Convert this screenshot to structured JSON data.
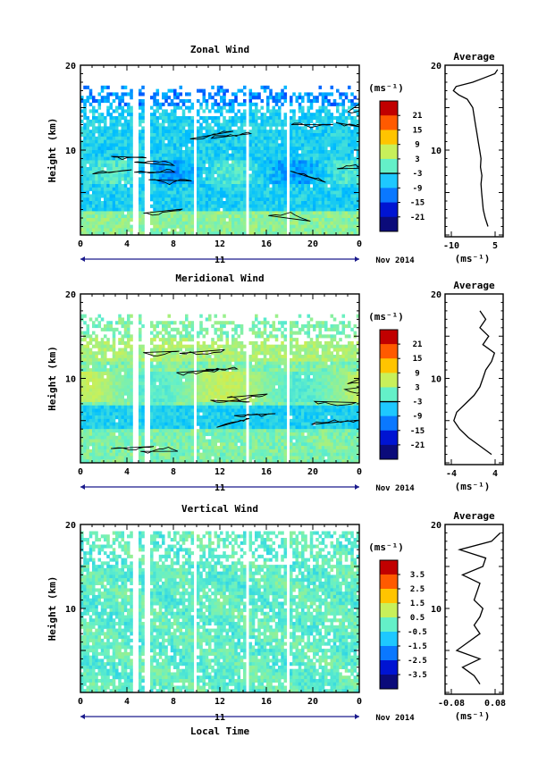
{
  "chart_data": [
    {
      "type": "heatmap",
      "title": "Zonal Wind",
      "ylabel": "Height (km)",
      "ylim": [
        0,
        20
      ],
      "xlim": [
        0,
        24
      ],
      "x_ticks": [
        "0",
        "4",
        "8",
        "12",
        "16",
        "20",
        "0"
      ],
      "y_ticks": [
        "20",
        "10"
      ],
      "date_day": "11",
      "date_month": "Nov 2014",
      "colorbar": {
        "unit": "(ms⁻¹)",
        "labels": [
          "21",
          "15",
          "9",
          "3",
          "-3",
          "-9",
          "-15",
          "-21"
        ],
        "range": [
          -24,
          24
        ]
      },
      "field": "zonal",
      "profile": {
        "title": "Average",
        "xlabel": "(ms⁻¹)",
        "x_ticks": [
          "-10",
          "5"
        ],
        "xlim": [
          -13,
          8
        ],
        "y_tick": "10",
        "y_top": "20",
        "heights": [
          1.0,
          2.0,
          3.0,
          4.0,
          5.0,
          6.0,
          7.0,
          8.0,
          9.0,
          10.0,
          11.0,
          12.0,
          13.0,
          14.0,
          15.0,
          16.0,
          16.5,
          17.0,
          17.5,
          18.0,
          18.5,
          19.0,
          19.5
        ],
        "values": [
          2.5,
          1.5,
          0.8,
          0.5,
          0.2,
          0.0,
          0.3,
          -0.2,
          0.0,
          -0.5,
          -1.0,
          -1.5,
          -2.0,
          -2.5,
          -3.0,
          -5.0,
          -8.0,
          -10.0,
          -9.0,
          -3.0,
          1.0,
          5.0,
          6.0
        ]
      }
    },
    {
      "type": "heatmap",
      "title": "Meridional Wind",
      "ylabel": "Height (km)",
      "ylim": [
        0,
        20
      ],
      "xlim": [
        0,
        24
      ],
      "x_ticks": [
        "0",
        "4",
        "8",
        "12",
        "16",
        "20",
        "0"
      ],
      "y_ticks": [
        "20",
        "10"
      ],
      "date_day": "11",
      "date_month": "Nov 2014",
      "colorbar": {
        "unit": "(ms⁻¹)",
        "labels": [
          "21",
          "15",
          "9",
          "3",
          "-3",
          "-9",
          "-15",
          "-21"
        ],
        "range": [
          -24,
          24
        ]
      },
      "field": "meridional",
      "profile": {
        "title": "Average",
        "xlabel": "(ms⁻¹)",
        "x_ticks": [
          "-4",
          "4"
        ],
        "xlim": [
          -5,
          5
        ],
        "y_tick": "10",
        "y_top": "20",
        "heights": [
          1.0,
          2.0,
          3.0,
          4.0,
          5.0,
          6.0,
          7.0,
          8.0,
          9.0,
          10.0,
          11.0,
          12.0,
          13.0,
          14.0,
          15.0,
          16.0,
          17.0,
          18.0
        ],
        "values": [
          3.0,
          1.0,
          -1.0,
          -2.5,
          -3.5,
          -3.0,
          -1.5,
          0.0,
          1.0,
          1.5,
          2.0,
          3.0,
          3.5,
          1.5,
          2.5,
          1.0,
          2.0,
          1.0
        ]
      }
    },
    {
      "type": "heatmap",
      "title": "Vertical Wind",
      "ylabel": "Height (km)",
      "ylim": [
        0,
        20
      ],
      "xlim": [
        0,
        24
      ],
      "x_ticks": [
        "0",
        "4",
        "8",
        "12",
        "16",
        "20",
        "0"
      ],
      "y_ticks": [
        "20",
        "10"
      ],
      "date_day": "11",
      "date_month": "Nov 2014",
      "xlabel": "Local Time",
      "colorbar": {
        "unit": "(ms⁻¹)",
        "labels": [
          "3.5",
          "2.5",
          "1.5",
          "0.5",
          "-0.5",
          "-1.5",
          "-2.5",
          "-3.5"
        ],
        "range": [
          -4,
          4
        ]
      },
      "field": "vertical",
      "profile": {
        "title": "Average",
        "xlabel": "(ms⁻¹)",
        "x_ticks": [
          "-0.08",
          "0.08"
        ],
        "xlim": [
          -0.1,
          0.1
        ],
        "y_tick": "10",
        "y_top": "20",
        "heights": [
          1.0,
          2.0,
          3.0,
          4.0,
          5.0,
          6.0,
          7.0,
          8.0,
          9.0,
          10.0,
          11.0,
          12.0,
          13.0,
          14.0,
          15.0,
          16.0,
          17.0,
          18.0,
          19.0
        ],
        "values": [
          0.02,
          0.0,
          -0.04,
          0.02,
          -0.06,
          -0.02,
          0.02,
          0.0,
          0.02,
          0.03,
          0.0,
          0.01,
          0.02,
          -0.04,
          0.03,
          0.04,
          -0.05,
          0.06,
          0.09
        ]
      }
    }
  ]
}
